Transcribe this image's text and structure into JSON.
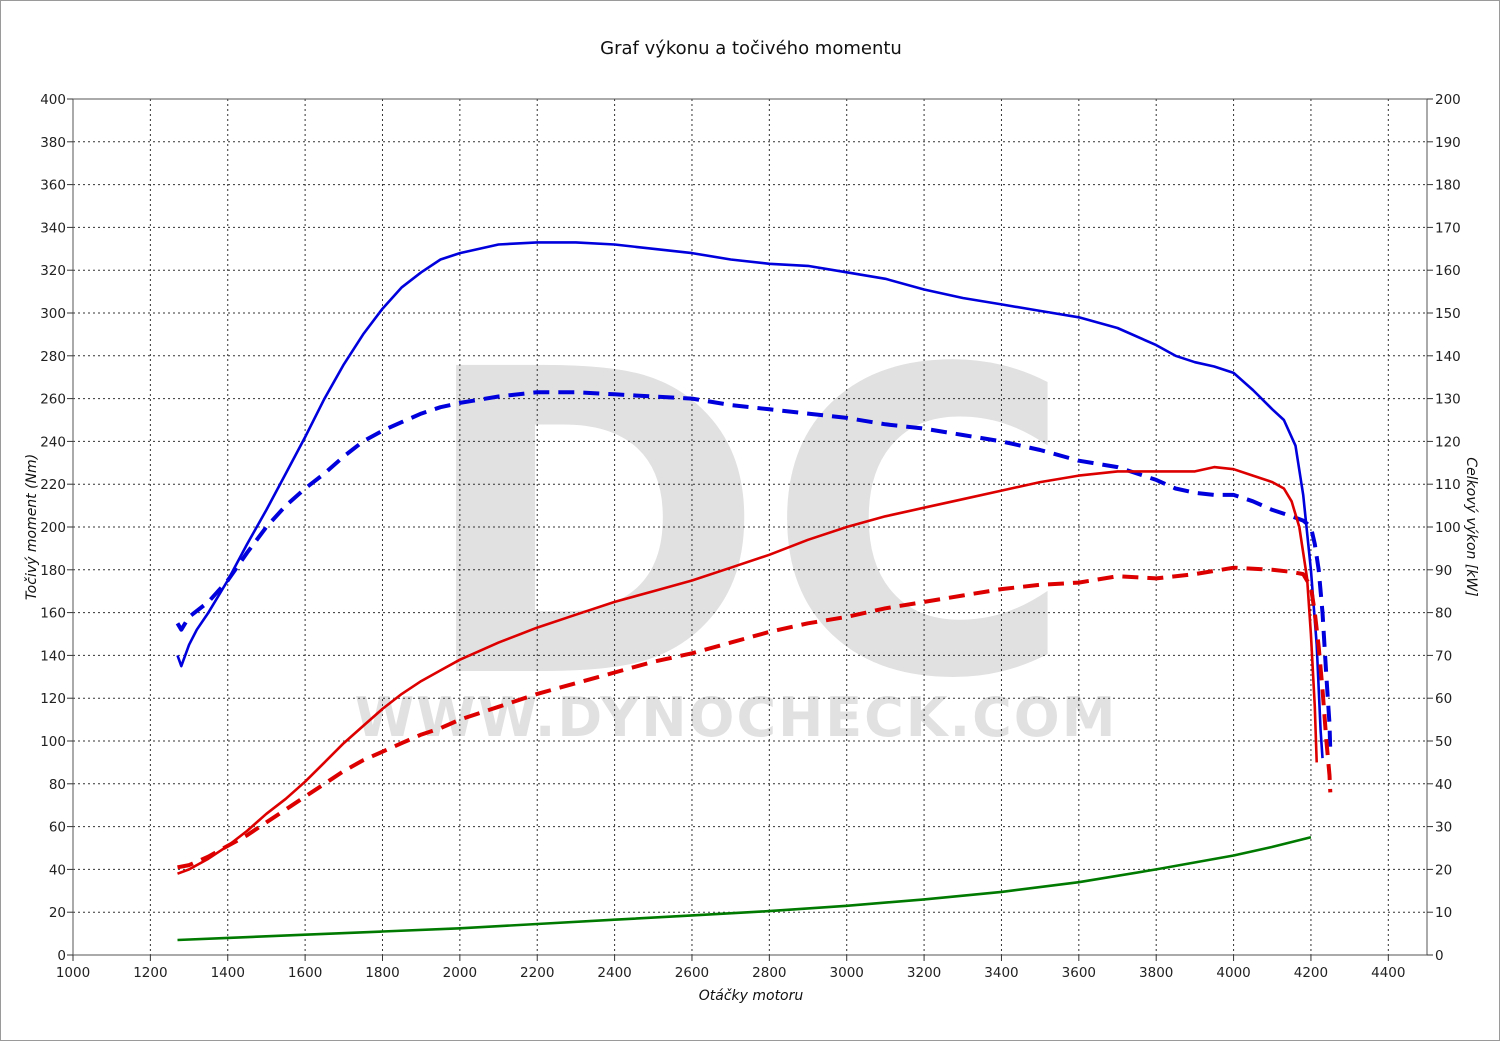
{
  "chart_data": {
    "type": "line",
    "title": "Graf výkonu a točivého momentu",
    "xlabel": "Otáčky motoru",
    "ylabel_left": "Točivý moment (Nm)",
    "ylabel_right": "Celkový výkon [kW]",
    "xlim": [
      1000,
      4500
    ],
    "ylim_left": [
      0,
      400
    ],
    "ylim_right": [
      0,
      200
    ],
    "x_ticks": [
      1000,
      1200,
      1400,
      1600,
      1800,
      2000,
      2200,
      2400,
      2600,
      2800,
      3000,
      3200,
      3400,
      3600,
      3800,
      4000,
      4200,
      4400
    ],
    "y_left_ticks": [
      0,
      20,
      40,
      60,
      80,
      100,
      120,
      140,
      160,
      180,
      200,
      220,
      240,
      260,
      280,
      300,
      320,
      340,
      360,
      380,
      400
    ],
    "y_right_ticks": [
      0,
      10,
      20,
      30,
      40,
      50,
      60,
      70,
      80,
      90,
      100,
      110,
      120,
      130,
      140,
      150,
      160,
      170,
      180,
      190,
      200
    ],
    "grid": true,
    "watermark": {
      "logo": "DC",
      "url": "WWW.DYNOCHECK.COM"
    },
    "series": [
      {
        "axis": "left",
        "color": "#0000dd",
        "dash": "solid",
        "points": [
          [
            1270,
            140
          ],
          [
            1280,
            135
          ],
          [
            1300,
            145
          ],
          [
            1320,
            152
          ],
          [
            1350,
            160
          ],
          [
            1400,
            175
          ],
          [
            1450,
            192
          ],
          [
            1500,
            208
          ],
          [
            1550,
            225
          ],
          [
            1600,
            242
          ],
          [
            1650,
            260
          ],
          [
            1700,
            276
          ],
          [
            1750,
            290
          ],
          [
            1800,
            302
          ],
          [
            1850,
            312
          ],
          [
            1900,
            319
          ],
          [
            1950,
            325
          ],
          [
            2000,
            328
          ],
          [
            2100,
            332
          ],
          [
            2200,
            333
          ],
          [
            2300,
            333
          ],
          [
            2400,
            332
          ],
          [
            2500,
            330
          ],
          [
            2600,
            328
          ],
          [
            2700,
            325
          ],
          [
            2800,
            323
          ],
          [
            2900,
            322
          ],
          [
            3000,
            319
          ],
          [
            3100,
            316
          ],
          [
            3200,
            311
          ],
          [
            3300,
            307
          ],
          [
            3400,
            304
          ],
          [
            3500,
            301
          ],
          [
            3600,
            298
          ],
          [
            3700,
            293
          ],
          [
            3800,
            285
          ],
          [
            3850,
            280
          ],
          [
            3900,
            277
          ],
          [
            3950,
            275
          ],
          [
            4000,
            272
          ],
          [
            4050,
            264
          ],
          [
            4100,
            255
          ],
          [
            4130,
            250
          ],
          [
            4160,
            238
          ],
          [
            4180,
            215
          ],
          [
            4200,
            180
          ],
          [
            4215,
            145
          ],
          [
            4225,
            105
          ],
          [
            4230,
            92
          ]
        ]
      },
      {
        "axis": "left",
        "color": "#0000dd",
        "dash": "dashed",
        "points": [
          [
            1270,
            155
          ],
          [
            1280,
            152
          ],
          [
            1300,
            158
          ],
          [
            1350,
            165
          ],
          [
            1400,
            175
          ],
          [
            1450,
            188
          ],
          [
            1500,
            200
          ],
          [
            1550,
            210
          ],
          [
            1600,
            218
          ],
          [
            1650,
            225
          ],
          [
            1700,
            233
          ],
          [
            1750,
            240
          ],
          [
            1800,
            245
          ],
          [
            1850,
            249
          ],
          [
            1900,
            253
          ],
          [
            1950,
            256
          ],
          [
            2000,
            258
          ],
          [
            2100,
            261
          ],
          [
            2200,
            263
          ],
          [
            2300,
            263
          ],
          [
            2400,
            262
          ],
          [
            2500,
            261
          ],
          [
            2600,
            260
          ],
          [
            2700,
            257
          ],
          [
            2800,
            255
          ],
          [
            2900,
            253
          ],
          [
            3000,
            251
          ],
          [
            3100,
            248
          ],
          [
            3200,
            246
          ],
          [
            3300,
            243
          ],
          [
            3400,
            240
          ],
          [
            3500,
            236
          ],
          [
            3600,
            231
          ],
          [
            3700,
            228
          ],
          [
            3800,
            222
          ],
          [
            3850,
            218
          ],
          [
            3900,
            216
          ],
          [
            3950,
            215
          ],
          [
            4000,
            215
          ],
          [
            4050,
            212
          ],
          [
            4100,
            208
          ],
          [
            4150,
            205
          ],
          [
            4180,
            203
          ],
          [
            4200,
            200
          ],
          [
            4210,
            192
          ],
          [
            4220,
            180
          ],
          [
            4230,
            160
          ],
          [
            4240,
            130
          ],
          [
            4248,
            108
          ],
          [
            4250,
            95
          ]
        ]
      },
      {
        "axis": "right",
        "color": "#dd0000",
        "dash": "solid",
        "points": [
          [
            1270,
            19
          ],
          [
            1300,
            20
          ],
          [
            1350,
            22.5
          ],
          [
            1400,
            25.5
          ],
          [
            1450,
            29
          ],
          [
            1500,
            33
          ],
          [
            1550,
            36.5
          ],
          [
            1600,
            40.5
          ],
          [
            1650,
            45
          ],
          [
            1700,
            49.5
          ],
          [
            1750,
            53.5
          ],
          [
            1800,
            57.5
          ],
          [
            1850,
            61
          ],
          [
            1900,
            64
          ],
          [
            1950,
            66.5
          ],
          [
            2000,
            69
          ],
          [
            2100,
            73
          ],
          [
            2200,
            76.5
          ],
          [
            2300,
            79.5
          ],
          [
            2400,
            82.5
          ],
          [
            2500,
            85
          ],
          [
            2600,
            87.5
          ],
          [
            2700,
            90.5
          ],
          [
            2800,
            93.5
          ],
          [
            2900,
            97
          ],
          [
            3000,
            100
          ],
          [
            3100,
            102.5
          ],
          [
            3200,
            104.5
          ],
          [
            3300,
            106.5
          ],
          [
            3400,
            108.5
          ],
          [
            3500,
            110.5
          ],
          [
            3600,
            112
          ],
          [
            3700,
            113
          ],
          [
            3800,
            113
          ],
          [
            3900,
            113
          ],
          [
            3950,
            114
          ],
          [
            4000,
            113.5
          ],
          [
            4050,
            112
          ],
          [
            4100,
            110.5
          ],
          [
            4130,
            109
          ],
          [
            4150,
            106
          ],
          [
            4170,
            100
          ],
          [
            4190,
            88
          ],
          [
            4200,
            75
          ],
          [
            4210,
            58
          ],
          [
            4215,
            45
          ]
        ]
      },
      {
        "axis": "right",
        "color": "#dd0000",
        "dash": "dashed",
        "points": [
          [
            1270,
            20.5
          ],
          [
            1300,
            21
          ],
          [
            1350,
            23
          ],
          [
            1400,
            25.5
          ],
          [
            1450,
            28
          ],
          [
            1500,
            31
          ],
          [
            1550,
            34
          ],
          [
            1600,
            37
          ],
          [
            1650,
            40
          ],
          [
            1700,
            43
          ],
          [
            1750,
            45.5
          ],
          [
            1800,
            47.5
          ],
          [
            1850,
            49.5
          ],
          [
            1900,
            51.5
          ],
          [
            1950,
            53
          ],
          [
            2000,
            55
          ],
          [
            2100,
            58
          ],
          [
            2200,
            61
          ],
          [
            2300,
            63.5
          ],
          [
            2400,
            66
          ],
          [
            2500,
            68.5
          ],
          [
            2600,
            70.5
          ],
          [
            2700,
            73
          ],
          [
            2800,
            75.5
          ],
          [
            2900,
            77.5
          ],
          [
            3000,
            79
          ],
          [
            3100,
            81
          ],
          [
            3200,
            82.5
          ],
          [
            3300,
            84
          ],
          [
            3400,
            85.5
          ],
          [
            3500,
            86.5
          ],
          [
            3600,
            87
          ],
          [
            3700,
            88.5
          ],
          [
            3800,
            88
          ],
          [
            3900,
            89
          ],
          [
            4000,
            90.5
          ],
          [
            4100,
            90
          ],
          [
            4150,
            89.5
          ],
          [
            4180,
            89
          ],
          [
            4200,
            86
          ],
          [
            4210,
            80
          ],
          [
            4220,
            72
          ],
          [
            4230,
            62
          ],
          [
            4240,
            50
          ],
          [
            4248,
            42
          ],
          [
            4250,
            38
          ]
        ]
      },
      {
        "axis": "left",
        "color": "#007a00",
        "dash": "solid",
        "points": [
          [
            1270,
            7
          ],
          [
            1400,
            8
          ],
          [
            1600,
            9.5
          ],
          [
            1800,
            11
          ],
          [
            2000,
            12.5
          ],
          [
            2200,
            14.5
          ],
          [
            2400,
            16.5
          ],
          [
            2600,
            18.5
          ],
          [
            2800,
            20.5
          ],
          [
            3000,
            23
          ],
          [
            3200,
            26
          ],
          [
            3400,
            29.5
          ],
          [
            3600,
            34
          ],
          [
            3800,
            40
          ],
          [
            4000,
            46.5
          ],
          [
            4100,
            50.5
          ],
          [
            4200,
            55
          ]
        ]
      }
    ]
  }
}
